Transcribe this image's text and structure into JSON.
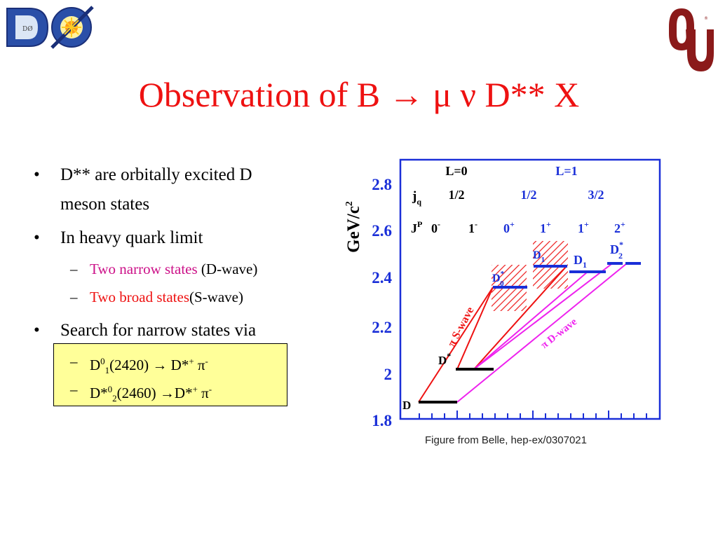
{
  "title": "Observation of B → μ ν D** X",
  "logos": {
    "left": "DØ",
    "right": "OU"
  },
  "bullets": [
    {
      "text_line1": "D** are orbitally excited D",
      "text_line2": "meson states"
    },
    {
      "text": "In heavy quark limit"
    },
    {
      "text": "Search for narrow states via"
    }
  ],
  "subbullets": {
    "narrow": {
      "colored": "Two narrow states",
      "rest": " (D-wave)"
    },
    "broad": {
      "colored": "Two broad states",
      "rest": "(S-wave)"
    },
    "decay1": {
      "a": "D",
      "sup1": "0",
      "sub1": "1",
      "b": "(2420) → D*",
      "sup2": "+",
      "c": " π",
      "sup3": "-"
    },
    "decay2": {
      "a": "D*",
      "sup1": "0",
      "sub1": "2",
      "b": "(2460) →D*",
      "sup2": "+",
      "c": " π",
      "sup3": "-"
    }
  },
  "diagram": {
    "y_axis_label": "GeV/c",
    "y_axis_label_sup": "2",
    "y_ticks": [
      "1.8",
      "2",
      "2.2",
      "2.4",
      "2.6",
      "2.8"
    ],
    "row_L": {
      "l0": "L=0",
      "l1": "L=1"
    },
    "row_j": {
      "label": "j",
      "sub": "q",
      "v1": "1/2",
      "v2": "1/2",
      "v3": "3/2"
    },
    "row_JP": {
      "label": "J",
      "sup": "P",
      "v0": "0",
      "v0s": "-",
      "v1": "1",
      "v1s": "-",
      "v2": "0",
      "v2s": "+",
      "v3": "1",
      "v3s": "+",
      "v4": "1",
      "v4s": "+",
      "v5": "2",
      "v5s": "+"
    },
    "levels": {
      "D": "D",
      "Dstar": "D",
      "Dstar_sup": "*",
      "D0star": "D",
      "D0star_sup": "*",
      "D0star_sub": "0",
      "D1broad": "D",
      "D1broad_sub": "1",
      "D1": "D",
      "D1_sub": "1",
      "D2star": "D",
      "D2star_sup": "*",
      "D2star_sub": "2"
    },
    "s_wave": "π S-wave",
    "d_wave": "π D-wave",
    "colors": {
      "red": "#ee1111",
      "magenta": "#ee22ee",
      "blue": "#1a2fd8",
      "level": "#000000"
    }
  },
  "caption": "Figure from Belle, hep-ex/0307021"
}
